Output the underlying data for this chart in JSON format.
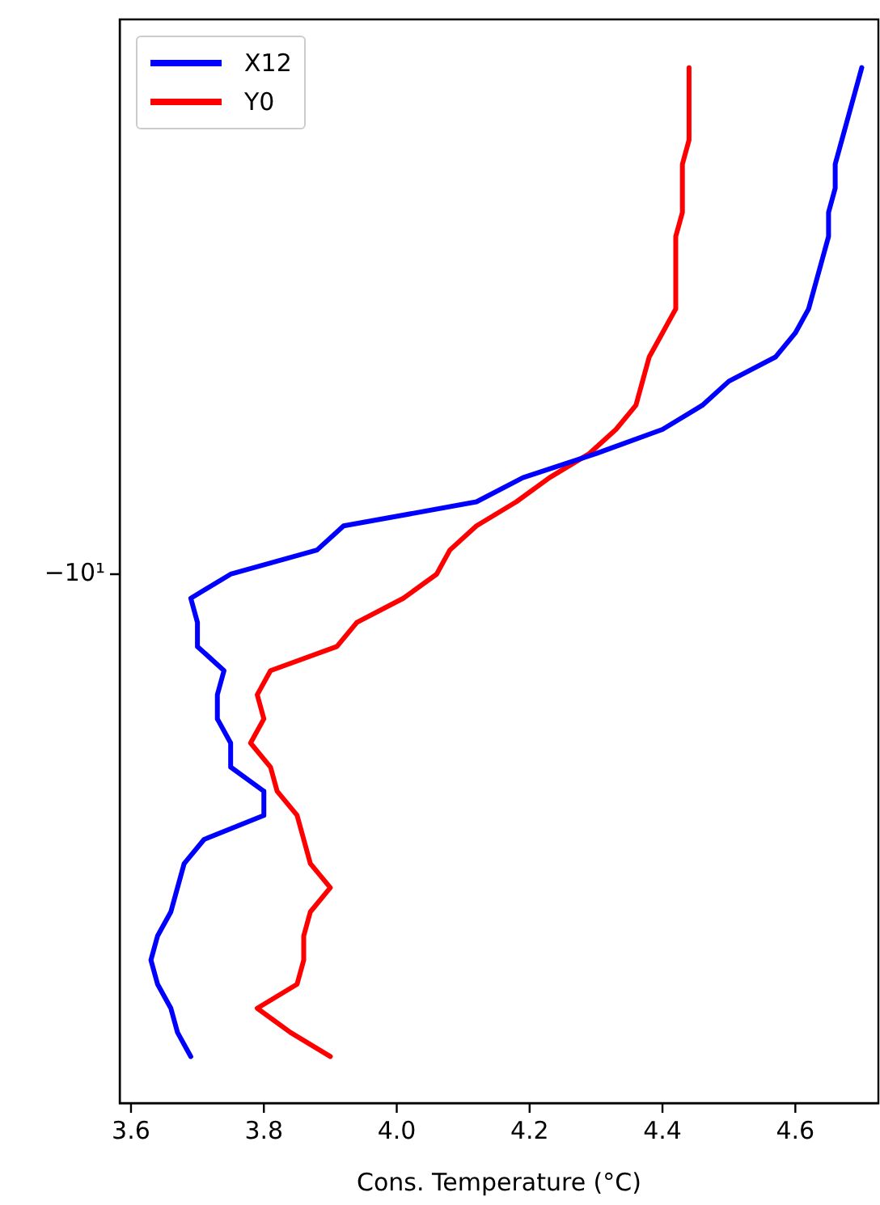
{
  "chart_data": {
    "type": "line",
    "orientation": "horizontal",
    "xlabel": "Cons. Temperature (°C)",
    "legend": "top left",
    "categories": [
      null,
      null,
      null,
      null,
      null,
      null,
      null,
      null,
      null,
      null,
      null,
      null,
      null,
      null,
      null,
      null,
      null,
      null,
      null,
      null,
      null,
      "−10¹",
      null,
      null,
      null,
      null,
      null,
      null,
      null,
      null,
      null,
      null,
      null,
      null,
      null,
      null,
      null,
      null,
      null,
      null,
      null,
      null
    ],
    "xlim": [
      3.583,
      4.725
    ],
    "xticks": [
      3.6,
      3.8,
      {
        "value": 4,
        "label": "4.0"
      },
      4.2,
      4.4,
      4.6
    ],
    "series": [
      {
        "name": "X12",
        "color": "#0000ff",
        "values": [
          4.7,
          4.69,
          4.68,
          4.67,
          4.66,
          4.66,
          4.65,
          4.65,
          4.64,
          4.63,
          4.62,
          4.6,
          4.57,
          4.5,
          4.46,
          4.4,
          4.3,
          4.19,
          4.12,
          3.92,
          3.88,
          3.75,
          3.69,
          3.7,
          3.7,
          3.74,
          3.73,
          3.73,
          3.75,
          3.75,
          3.8,
          3.8,
          3.71,
          3.68,
          3.67,
          3.66,
          3.64,
          3.63,
          3.64,
          3.66,
          3.67,
          3.69
        ]
      },
      {
        "name": "Y0",
        "color": "#ff0000",
        "values": [
          4.44,
          4.44,
          4.44,
          4.44,
          4.43,
          4.43,
          4.43,
          4.42,
          4.42,
          4.42,
          4.42,
          4.4,
          4.38,
          4.37,
          4.36,
          4.33,
          4.29,
          4.23,
          4.18,
          4.12,
          4.08,
          4.06,
          4.01,
          3.94,
          3.91,
          3.81,
          3.79,
          3.8,
          3.78,
          3.81,
          3.82,
          3.85,
          3.86,
          3.87,
          3.9,
          3.87,
          3.86,
          3.86,
          3.85,
          3.79,
          3.84,
          3.9
        ]
      }
    ]
  }
}
